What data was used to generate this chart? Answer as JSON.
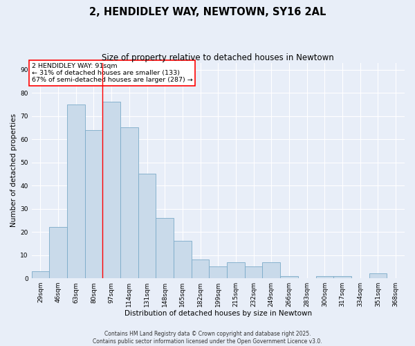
{
  "title_line1": "2, HENDIDLEY WAY, NEWTOWN, SY16 2AL",
  "title_line2": "Size of property relative to detached houses in Newtown",
  "xlabel": "Distribution of detached houses by size in Newtown",
  "ylabel": "Number of detached properties",
  "categories": [
    "29sqm",
    "46sqm",
    "63sqm",
    "80sqm",
    "97sqm",
    "114sqm",
    "131sqm",
    "148sqm",
    "165sqm",
    "182sqm",
    "199sqm",
    "215sqm",
    "232sqm",
    "249sqm",
    "266sqm",
    "283sqm",
    "300sqm",
    "317sqm",
    "334sqm",
    "351sqm",
    "368sqm"
  ],
  "values": [
    3,
    22,
    75,
    64,
    76,
    65,
    45,
    26,
    16,
    8,
    5,
    7,
    5,
    7,
    1,
    0,
    1,
    1,
    0,
    2,
    0
  ],
  "bar_color": "#c9daea",
  "bar_edge_color": "#7aaac8",
  "bar_edge_width": 0.6,
  "background_color": "#e8eef8",
  "grid_color": "#ffffff",
  "red_line_x": 3.5,
  "annotation_text": "2 HENDIDLEY WAY: 91sqm\n← 31% of detached houses are smaller (133)\n67% of semi-detached houses are larger (287) →",
  "annotation_box_color": "white",
  "annotation_box_edge": "red",
  "ylim": [
    0,
    93
  ],
  "yticks": [
    0,
    10,
    20,
    30,
    40,
    50,
    60,
    70,
    80,
    90
  ],
  "footer": "Contains HM Land Registry data © Crown copyright and database right 2025.\nContains public sector information licensed under the Open Government Licence v3.0.",
  "title_fontsize": 10.5,
  "subtitle_fontsize": 8.5,
  "axis_label_fontsize": 7.5,
  "tick_fontsize": 6.5,
  "annot_fontsize": 6.8,
  "footer_fontsize": 5.5
}
